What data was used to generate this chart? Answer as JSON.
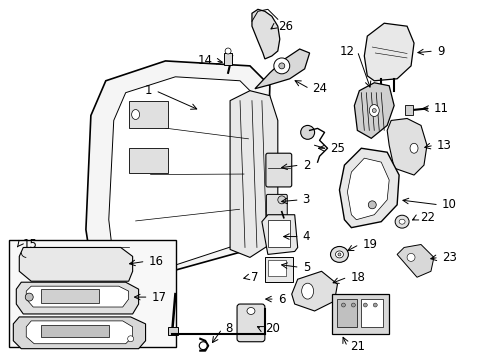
{
  "bg_color": "#ffffff",
  "line_color": "#000000",
  "text_color": "#000000",
  "font_size": 8.5,
  "fig_width": 4.89,
  "fig_height": 3.6,
  "dpi": 100
}
